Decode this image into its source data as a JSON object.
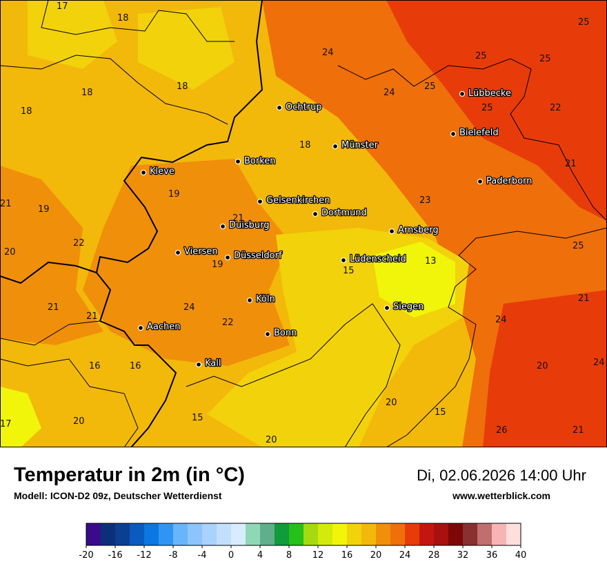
{
  "header": {
    "title": "Temperatur in 2m (in °C)",
    "model": "Modell: ICON-D2 09z, Deutscher Wetterdienst",
    "datetime": "Di, 02.06.2026 14:00 Uhr",
    "website": "www.wetterblick.com"
  },
  "cities": [
    {
      "name": "Lübbecke"
    },
    {
      "name": "Ochtrup"
    },
    {
      "name": "Bielefeld"
    },
    {
      "name": "Münster"
    },
    {
      "name": "Borken"
    },
    {
      "name": "Kleve"
    },
    {
      "name": "Paderborn"
    },
    {
      "name": "Gelsenkirchen"
    },
    {
      "name": "Dortmund"
    },
    {
      "name": "Duisburg"
    },
    {
      "name": "Arnsberg"
    },
    {
      "name": "Viersen"
    },
    {
      "name": "Düsseldorf"
    },
    {
      "name": "Lüdenscheid"
    },
    {
      "name": "Köln"
    },
    {
      "name": "Siegen"
    },
    {
      "name": "Aachen"
    },
    {
      "name": "Bonn"
    },
    {
      "name": "Kall"
    }
  ],
  "temperature_labels": [
    "17",
    "18",
    "18",
    "18",
    "18",
    "24",
    "25",
    "25",
    "25",
    "24",
    "25",
    "25",
    "22",
    "18",
    "19",
    "21",
    "19",
    "21",
    "23",
    "21",
    "22",
    "20",
    "19",
    "13",
    "25",
    "15",
    "21",
    "24",
    "21",
    "24",
    "22",
    "16",
    "16",
    "21",
    "24",
    "20",
    "20",
    "15",
    "15",
    "20",
    "17",
    "26",
    "21",
    "20"
  ],
  "legend": {
    "ticks": [
      "-20",
      "-16",
      "-12",
      "-8",
      "-4",
      "0",
      "4",
      "8",
      "12",
      "16",
      "20",
      "24",
      "28",
      "32",
      "36",
      "40"
    ],
    "colors": [
      "#3a0a8a",
      "#0b2f7a",
      "#0b3f8f",
      "#0a5bc0",
      "#0a78e0",
      "#2f95f5",
      "#6ab4fa",
      "#8cc4fb",
      "#a9d2fc",
      "#c2dffd",
      "#d9ebfe",
      "#8fd8b5",
      "#5fae8c",
      "#0f9c3a",
      "#25c018",
      "#a6da10",
      "#d2eb0a",
      "#f1f50a",
      "#f2d20a",
      "#f2b80a",
      "#f08f0a",
      "#ef6f0a",
      "#e83b0a",
      "#c4160f",
      "#a8110f",
      "#7d0707",
      "#893030",
      "#c06e6e",
      "#f7b4b4",
      "#ffdede"
    ]
  }
}
